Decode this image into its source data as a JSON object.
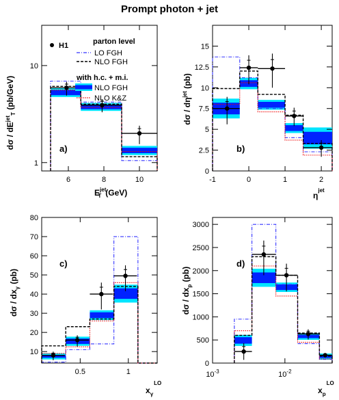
{
  "figure_title": "Prompt photon + jet",
  "colors": {
    "lo_fgh": "#3333ff",
    "nlo_fgh_parton": "#000000",
    "nlo_fgh_band": "#0022ff",
    "nlo_fgh_band_outer": "#00e5ff",
    "nlo_kz": "#ee0000",
    "data": "#000000"
  },
  "legend": {
    "data_label": "H1",
    "parton_header": "parton level",
    "lo_fgh": "LO FGH",
    "nlo_fgh": "NLO FGH",
    "hcmi_header": "with h.c. + m.i.",
    "nlo_fgh_band": "NLO FGH",
    "nlo_kz": "NLO K&Z"
  },
  "chart_data": [
    {
      "type": "histogram",
      "panel_label": "a)",
      "ylabel": "dσ / dE_T^jet (pb/GeV)",
      "xlabel": "E_T^jet (GeV)",
      "xlim": [
        4.5,
        11
      ],
      "ylim": [
        0.82,
        26
      ],
      "yscale": "log",
      "xticks": [
        "6",
        "8",
        "10"
      ],
      "yticks": [
        "1",
        "10"
      ],
      "bins": [
        [
          5,
          6.7
        ],
        [
          6.7,
          9
        ],
        [
          9,
          11
        ]
      ],
      "series": {
        "lo_fgh": [
          6.9,
          4.2,
          1.05
        ],
        "nlo_fgh_parton": [
          6.1,
          4.0,
          1.15
        ],
        "nlo_fgh_band": [
          [
            4.95,
            5.6
          ],
          [
            3.55,
            3.95
          ],
          [
            1.25,
            1.42
          ]
        ],
        "nlo_kz": [
          5.6,
          3.7,
          1.3
        ]
      },
      "data_points": [
        {
          "x": 5.9,
          "y": 5.9,
          "xerr": [
            0.9,
            0.8
          ],
          "yerr": [
            1.0,
            0.9
          ]
        },
        {
          "x": 7.9,
          "y": 3.9,
          "xerr": [
            1.2,
            1.1
          ],
          "yerr": [
            0.6,
            0.6
          ]
        },
        {
          "x": 10.0,
          "y": 2.0,
          "xerr": [
            1.0,
            1.0
          ],
          "yerr": [
            0.45,
            0.4
          ]
        }
      ]
    },
    {
      "type": "histogram",
      "panel_label": "b)",
      "ylabel": "dσ / dη^jet (pb)",
      "xlabel": "η^jet",
      "xlim": [
        -1,
        2.3
      ],
      "ylim": [
        0,
        17.5
      ],
      "yscale": "linear",
      "xticks": [
        "-1",
        "0",
        "1",
        "2"
      ],
      "yticks": [
        "0",
        "2.5",
        "5",
        "7.5",
        "10",
        "12.5",
        "15"
      ],
      "bins": [
        [
          -1,
          -0.25
        ],
        [
          -0.25,
          0.25
        ],
        [
          0.25,
          1
        ],
        [
          1,
          1.5
        ],
        [
          1.5,
          2.3
        ]
      ],
      "series": {
        "lo_fgh": [
          13.7,
          11.2,
          7.5,
          4.0,
          2.3
        ],
        "nlo_fgh_parton": [
          9.9,
          12.0,
          9.2,
          6.7,
          3.3
        ],
        "nlo_fgh_band": [
          [
            6.8,
            8.2
          ],
          [
            10.1,
            10.9
          ],
          [
            7.6,
            8.3
          ],
          [
            4.8,
            5.5
          ],
          [
            3.2,
            4.7
          ]
        ],
        "nlo_kz": [
          8.0,
          10.6,
          7.1,
          3.7,
          1.9
        ]
      },
      "data_points": [
        {
          "x": -0.6,
          "y": 7.5,
          "xerr": [
            0.4,
            0.35
          ],
          "yerr": [
            1.9,
            1.4
          ]
        },
        {
          "x": 0.0,
          "y": 12.4,
          "xerr": [
            0.25,
            0.25
          ],
          "yerr": [
            2.0,
            1.5
          ]
        },
        {
          "x": 0.65,
          "y": 12.3,
          "xerr": [
            0.4,
            0.35
          ],
          "yerr": [
            2.3,
            1.8
          ]
        },
        {
          "x": 1.25,
          "y": 6.6,
          "xerr": [
            0.25,
            0.25
          ],
          "yerr": [
            1.2,
            1.0
          ]
        },
        {
          "x": 2.0,
          "y": 2.8,
          "xerr": [
            0.5,
            0.3
          ],
          "yerr": [
            1.1,
            0.9
          ]
        }
      ]
    },
    {
      "type": "histogram",
      "panel_label": "c)",
      "ylabel": "dσ / dx_γ (pb)",
      "xlabel": "x_γ^LO",
      "xlim": [
        0.1,
        1.3
      ],
      "ylim": [
        4,
        80
      ],
      "yscale": "linear",
      "xticks": [
        "0.5",
        "1"
      ],
      "yticks": [
        "10",
        "20",
        "30",
        "40",
        "50",
        "60",
        "70",
        "80"
      ],
      "bins": [
        [
          0.1,
          0.35
        ],
        [
          0.35,
          0.6
        ],
        [
          0.6,
          0.85
        ],
        [
          0.85,
          1.1
        ],
        [
          1.1,
          1.3
        ]
      ],
      "series": {
        "lo_fgh": [
          4.5,
          11.0,
          14.0,
          70.0,
          1.5
        ],
        "nlo_fgh_parton": [
          13.0,
          23.0,
          27.0,
          44.0,
          3.0
        ],
        "nlo_fgh_band": [
          [
            6.8,
            8.2
          ],
          [
            14.0,
            16.8
          ],
          [
            27.5,
            30.5
          ],
          [
            37.5,
            43.0
          ],
          [
            null,
            null
          ]
        ],
        "nlo_kz": [
          9.0,
          12.5,
          26.0,
          46.0,
          1.0
        ]
      },
      "data_points": [
        {
          "x": 0.22,
          "y": 8.0,
          "xerr": [
            0.12,
            0.12
          ],
          "yerr": [
            2.5,
            2.0
          ]
        },
        {
          "x": 0.47,
          "y": 16.0,
          "xerr": [
            0.12,
            0.12
          ],
          "yerr": [
            3.5,
            2.5
          ]
        },
        {
          "x": 0.72,
          "y": 40.0,
          "xerr": [
            0.12,
            0.12
          ],
          "yerr": [
            8.0,
            6.0
          ]
        },
        {
          "x": 0.97,
          "y": 49.5,
          "xerr": [
            0.12,
            0.12
          ],
          "yerr": [
            8.0,
            5.5
          ]
        }
      ]
    },
    {
      "type": "histogram",
      "panel_label": "d)",
      "ylabel": "dσ / dx_p (pb)",
      "xlabel": "x_p^LO",
      "xlim": [
        0.001,
        0.045
      ],
      "ylim": [
        0,
        3150
      ],
      "yscale": "linear",
      "xscale": "log",
      "xticks": [
        "10^-3",
        "10^-2"
      ],
      "yticks": [
        "0",
        "500",
        "1000",
        "1500",
        "2000",
        "2500",
        "3000"
      ],
      "bins": [
        [
          0.002,
          0.0035
        ],
        [
          0.0035,
          0.0075
        ],
        [
          0.0075,
          0.015
        ],
        [
          0.015,
          0.03
        ],
        [
          0.03,
          0.045
        ]
      ],
      "series": {
        "lo_fgh": [
          950,
          3000,
          1700,
          420,
          80
        ],
        "nlo_fgh_parton": [
          600,
          2300,
          1900,
          650,
          150
        ],
        "nlo_fgh_band": [
          [
            420,
            560
          ],
          [
            1730,
            1960
          ],
          [
            1580,
            1700
          ],
          [
            540,
            610
          ],
          [
            110,
            170
          ]
        ],
        "nlo_kz": [
          700,
          2100,
          1450,
          450,
          90
        ]
      },
      "data_points": [
        {
          "x": 0.0027,
          "y": 250,
          "xerr": [
            0.0007,
            0.0008
          ],
          "yerr": [
            180,
            180
          ]
        },
        {
          "x": 0.0051,
          "y": 2350,
          "xerr": [
            0.0016,
            0.0024
          ],
          "yerr": [
            450,
            300
          ]
        },
        {
          "x": 0.0105,
          "y": 1900,
          "xerr": [
            0.003,
            0.0045
          ],
          "yerr": [
            350,
            250
          ]
        },
        {
          "x": 0.021,
          "y": 630,
          "xerr": [
            0.006,
            0.009
          ],
          "yerr": [
            120,
            100
          ]
        },
        {
          "x": 0.036,
          "y": 170,
          "xerr": [
            0.006,
            0.009
          ],
          "yerr": [
            40,
            40
          ]
        }
      ]
    }
  ]
}
